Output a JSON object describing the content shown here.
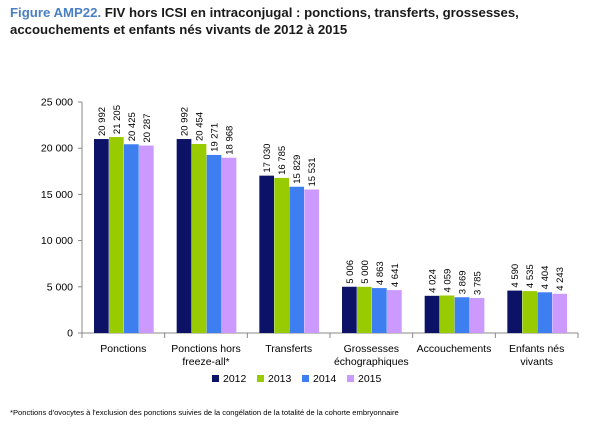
{
  "title": {
    "figure_label": "Figure AMP22.",
    "text": "FIV hors ICSI en intraconjugal : ponctions, transferts, grossesses, accouchements et enfants nés vivants de 2012 à 2015"
  },
  "footnote": "*Ponctions d'ovocytes à l'exclusion des ponctions suivies de la congélation de la totalité de la cohorte embryonnaire",
  "colors": {
    "2012": "#0c1366",
    "2013": "#99cc00",
    "2014": "#3d7ef0",
    "2015": "#cc99ff"
  },
  "chart_data": {
    "type": "bar",
    "categories": [
      [
        "Ponctions"
      ],
      [
        "Ponctions hors",
        "freeze-all*"
      ],
      [
        "Transferts"
      ],
      [
        "Grossesses",
        "échographiques"
      ],
      [
        "Accouchements"
      ],
      [
        "Enfants nés",
        "vivants"
      ]
    ],
    "series": [
      {
        "name": "2012",
        "values": [
          20992,
          20992,
          17030,
          5006,
          4024,
          4590
        ],
        "labels": [
          "20 992",
          "20 992",
          "17 030",
          "5 006",
          "4 024",
          "4 590"
        ]
      },
      {
        "name": "2013",
        "values": [
          21205,
          20454,
          16785,
          5000,
          4059,
          4535
        ],
        "labels": [
          "21 205",
          "20 454",
          "16 785",
          "5 000",
          "4 059",
          "4 535"
        ]
      },
      {
        "name": "2014",
        "values": [
          20425,
          19271,
          15829,
          4863,
          3869,
          4404
        ],
        "labels": [
          "20 425",
          "19 271",
          "15 829",
          "4 863",
          "3 869",
          "4 404"
        ]
      },
      {
        "name": "2015",
        "values": [
          20287,
          18968,
          15531,
          4641,
          3785,
          4243
        ],
        "labels": [
          "20 287",
          "18 968",
          "15 531",
          "4 641",
          "3 785",
          "4 243"
        ]
      }
    ],
    "y_ticks": [
      0,
      5000,
      10000,
      15000,
      20000,
      25000
    ],
    "y_tick_labels": [
      "0",
      "5 000",
      "10 000",
      "15 000",
      "20 000",
      "25 000"
    ],
    "ylim": [
      0,
      25000
    ],
    "grid": false,
    "legend_position": "bottom"
  }
}
